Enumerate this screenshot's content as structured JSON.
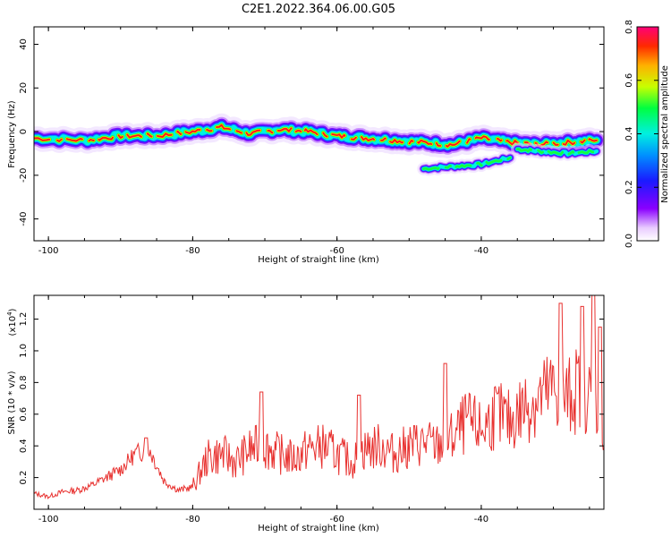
{
  "figure": {
    "title": "C2E1.2022.364.06.00.G05"
  },
  "chart_data": [
    {
      "type": "heatmap",
      "xlabel": "Height of straight line (km)",
      "ylabel": "Frequency (Hz)",
      "xlim": [
        -102,
        -23
      ],
      "ylim": [
        -50,
        48
      ],
      "xticks": [
        -100,
        -80,
        -60,
        -40
      ],
      "yticks": [
        -40,
        -20,
        0,
        20,
        40
      ],
      "colorbar": {
        "label": "Normalized spectral amplitude",
        "range": [
          0,
          0.8
        ],
        "ticks": [
          "0.0",
          "0.2",
          "0.4",
          "0.6",
          "0.8"
        ],
        "colormap": "rainbow"
      },
      "ridges": [
        {
          "x": [
            -102,
            -95,
            -90,
            -85,
            -80,
            -76,
            -72,
            -68,
            -64,
            -60,
            -56,
            -52,
            -48,
            -44,
            -40,
            -36,
            -32,
            -28,
            -24
          ],
          "y": [
            -3,
            -4,
            -2,
            -2,
            0,
            2,
            -1,
            1,
            0,
            -2,
            -3,
            -4,
            -5,
            -6,
            -3,
            -5,
            -6,
            -5,
            -4
          ]
        },
        {
          "x": [
            -35,
            -32,
            -28,
            -24
          ],
          "y": [
            -8,
            -9,
            -10,
            -9
          ]
        },
        {
          "x": [
            -48,
            -44,
            -40,
            -36
          ],
          "y": [
            -17,
            -16,
            -15,
            -12
          ]
        }
      ],
      "peak_amplitude": 0.8
    },
    {
      "type": "line",
      "xlabel": "Height of straight line (km)",
      "ylabel": "SNR (10 * v/v)",
      "y_scale_label": "(x10^4)",
      "xlim": [
        -102,
        -23
      ],
      "ylim": [
        0,
        1.35
      ],
      "xticks": [
        -100,
        -80,
        -60,
        -40
      ],
      "yticks": [
        0.2,
        0.4,
        0.6,
        0.8,
        1.0,
        1.2
      ],
      "color": "#e8312f",
      "series": [
        {
          "x": [
            -102,
            -100,
            -98,
            -96,
            -94,
            -92,
            -90,
            -88,
            -86,
            -84,
            -82,
            -80,
            -78,
            -76,
            -74,
            -72,
            -70,
            -68,
            -66,
            -64,
            -62,
            -60,
            -58,
            -56,
            -54,
            -52,
            -50,
            -48,
            -46,
            -44,
            -42,
            -40,
            -38,
            -36,
            -34,
            -32,
            -30,
            -28,
            -26,
            -24,
            -23
          ],
          "y": [
            0.1,
            0.08,
            0.11,
            0.12,
            0.15,
            0.2,
            0.25,
            0.35,
            0.38,
            0.18,
            0.12,
            0.14,
            0.32,
            0.35,
            0.3,
            0.38,
            0.4,
            0.35,
            0.32,
            0.38,
            0.4,
            0.35,
            0.3,
            0.38,
            0.4,
            0.35,
            0.4,
            0.42,
            0.4,
            0.45,
            0.55,
            0.5,
            0.6,
            0.55,
            0.65,
            0.7,
            0.75,
            0.7,
            0.8,
            0.6,
            0.55
          ],
          "peaks": [
            {
              "x": -86.5,
              "y": 0.45
            },
            {
              "x": -70.5,
              "y": 0.74
            },
            {
              "x": -57,
              "y": 0.72
            },
            {
              "x": -45,
              "y": 0.92
            },
            {
              "x": -29,
              "y": 1.3
            },
            {
              "x": -26,
              "y": 1.28
            },
            {
              "x": -24.5,
              "y": 1.35
            },
            {
              "x": -23.5,
              "y": 1.15
            }
          ]
        }
      ]
    }
  ]
}
